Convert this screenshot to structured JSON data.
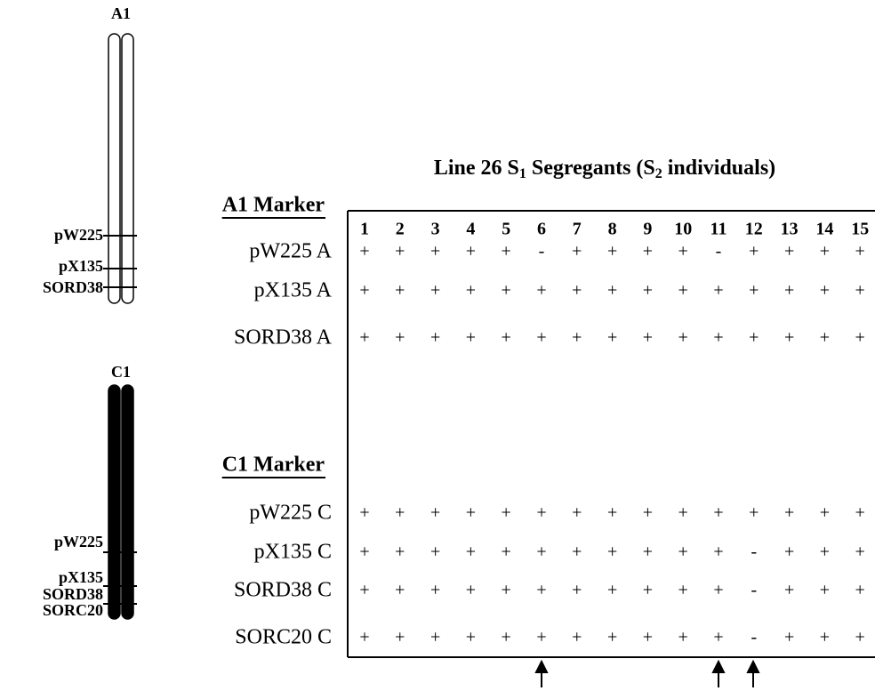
{
  "a1_chromosome": {
    "label": "A1",
    "markers": [
      "pW225",
      "pX135",
      "SORD38"
    ]
  },
  "c1_chromosome": {
    "label": "C1",
    "markers": [
      "pW225",
      "pX135",
      "SORD38",
      "SORC20"
    ]
  },
  "table": {
    "title_parts": [
      "Line 26 S",
      "1",
      " Segregants (S",
      "2",
      " individuals)"
    ],
    "columns": [
      1,
      2,
      3,
      4,
      5,
      6,
      7,
      8,
      9,
      10,
      11,
      12,
      13,
      14,
      15
    ],
    "sections": [
      {
        "header": "A1 Marker",
        "rows": [
          {
            "label": "pW225 A",
            "cells": [
              "+",
              "+",
              "+",
              "+",
              "+",
              "-",
              "+",
              "+",
              "+",
              "+",
              "-",
              "+",
              "+",
              "+",
              "+"
            ]
          },
          {
            "label": "pX135 A",
            "cells": [
              "+",
              "+",
              "+",
              "+",
              "+",
              "+",
              "+",
              "+",
              "+",
              "+",
              "+",
              "+",
              "+",
              "+",
              "+"
            ]
          },
          {
            "label": "SORD38 A",
            "cells": [
              "+",
              "+",
              "+",
              "+",
              "+",
              "+",
              "+",
              "+",
              "+",
              "+",
              "+",
              "+",
              "+",
              "+",
              "+"
            ]
          }
        ]
      },
      {
        "header": "C1 Marker",
        "rows": [
          {
            "label": "pW225 C",
            "cells": [
              "+",
              "+",
              "+",
              "+",
              "+",
              "+",
              "+",
              "+",
              "+",
              "+",
              "+",
              "+",
              "+",
              "+",
              "+"
            ]
          },
          {
            "label": "pX135 C",
            "cells": [
              "+",
              "+",
              "+",
              "+",
              "+",
              "+",
              "+",
              "+",
              "+",
              "+",
              "+",
              "-",
              "+",
              "+",
              "+"
            ]
          },
          {
            "label": "SORD38 C",
            "cells": [
              "+",
              "+",
              "+",
              "+",
              "+",
              "+",
              "+",
              "+",
              "+",
              "+",
              "+",
              "-",
              "+",
              "+",
              "+"
            ]
          },
          {
            "label": "SORC20 C",
            "cells": [
              "+",
              "+",
              "+",
              "+",
              "+",
              "+",
              "+",
              "+",
              "+",
              "+",
              "+",
              "-",
              "+",
              "+",
              "+"
            ]
          }
        ]
      }
    ]
  }
}
